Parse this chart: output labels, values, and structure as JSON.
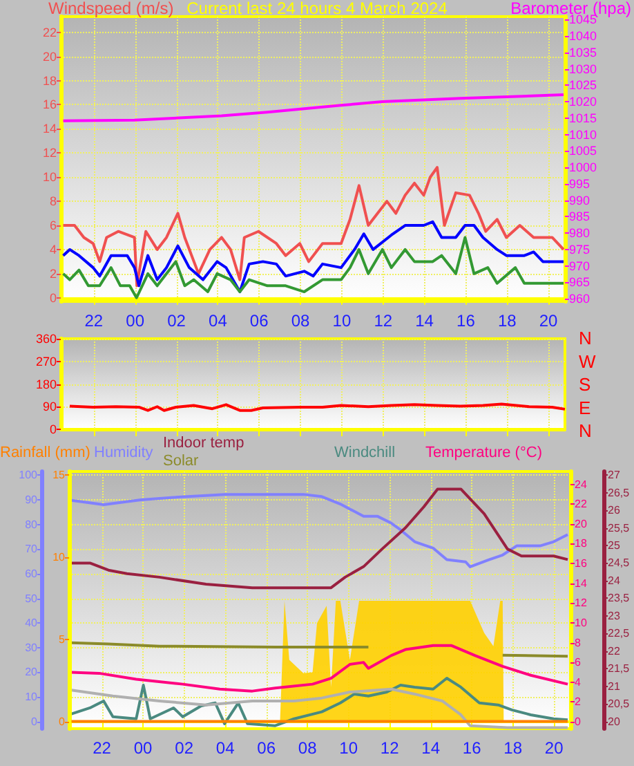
{
  "chart_data": [
    {
      "type": "line",
      "title": "Current last 24 hours 4 March 2024",
      "ylabel": "Windspeed (m/s)",
      "y2label": "Barometer (hpa)",
      "xlim": [
        "2024-03-03T20:24",
        "2024-03-04T20:48"
      ],
      "xticks": [
        {
          "value": "2024-03-03T22:00",
          "label": "22"
        },
        {
          "value": "2024-03-04T00:00",
          "label": "00"
        },
        {
          "value": "2024-03-04T02:00",
          "label": "02"
        },
        {
          "value": "2024-03-04T04:00",
          "label": "04"
        },
        {
          "value": "2024-03-04T06:00",
          "label": "06"
        },
        {
          "value": "2024-03-04T08:00",
          "label": "08"
        },
        {
          "value": "2024-03-04T10:00",
          "label": "10"
        },
        {
          "value": "2024-03-04T12:00",
          "label": "12"
        },
        {
          "value": "2024-03-04T14:00",
          "label": "14"
        },
        {
          "value": "2024-03-04T16:00",
          "label": "16"
        },
        {
          "value": "2024-03-04T18:00",
          "label": "18"
        },
        {
          "value": "2024-03-04T20:00",
          "label": "20"
        }
      ],
      "ylim": [
        -0.3,
        23.3
      ],
      "yticks": [
        0,
        2,
        4,
        6,
        8,
        10,
        12,
        14,
        16,
        18,
        20,
        22
      ],
      "y2lim": [
        959.2,
        1045.9
      ],
      "y2ticks": [
        960,
        965,
        970,
        975,
        980,
        985,
        990,
        995,
        1000,
        1005,
        1010,
        1015,
        1020,
        1025,
        1030,
        1035,
        1040,
        1045
      ],
      "grid": true,
      "marker": "none",
      "series": [
        {
          "color": "#f05050",
          "x": [
            "2024-03-03T20:31",
            "2024-03-03T21:04",
            "2024-03-03T21:31",
            "2024-03-03T21:58",
            "2024-03-03T22:17",
            "2024-03-03T22:37",
            "2024-03-03T23:11",
            "2024-03-03T23:58",
            "2024-03-04T00:05",
            "2024-03-04T00:31",
            "2024-03-04T01:04",
            "2024-03-04T01:31",
            "2024-03-04T02:04",
            "2024-03-04T02:24",
            "2024-03-04T03:04",
            "2024-03-04T03:37",
            "2024-03-04T04:11",
            "2024-03-04T04:37",
            "2024-03-04T05:04",
            "2024-03-04T05:17",
            "2024-03-04T05:58",
            "2024-03-04T06:50",
            "2024-03-04T07:17",
            "2024-03-04T07:58",
            "2024-03-04T08:24",
            "2024-03-04T09:04",
            "2024-03-04T09:58",
            "2024-03-04T10:24",
            "2024-03-04T10:50",
            "2024-03-04T11:17",
            "2024-03-04T11:44",
            "2024-03-04T12:11",
            "2024-03-04T12:37",
            "2024-03-04T13:04",
            "2024-03-04T13:31",
            "2024-03-04T13:58",
            "2024-03-04T14:17",
            "2024-03-04T14:37",
            "2024-03-04T14:58",
            "2024-03-04T15:31",
            "2024-03-04T16:11",
            "2024-03-04T16:37",
            "2024-03-04T16:58",
            "2024-03-04T17:31",
            "2024-03-04T17:58",
            "2024-03-04T18:37",
            "2024-03-04T19:17",
            "2024-03-04T20:11",
            "2024-03-04T20:44"
          ],
          "values": [
            6,
            6,
            5,
            4.5,
            3,
            5,
            5.5,
            5,
            1,
            5.5,
            4,
            5,
            7,
            5,
            2,
            4,
            5,
            4,
            1.5,
            5,
            5.5,
            4.5,
            3.5,
            4.5,
            3,
            4.5,
            4.5,
            6.5,
            9.3,
            6,
            7,
            8,
            7,
            8.5,
            9.5,
            8.5,
            10,
            10.8,
            6,
            8.7,
            8.5,
            7,
            5.5,
            6.5,
            5,
            6,
            5,
            5,
            4
          ]
        },
        {
          "color": "#0000ff",
          "x": [
            "2024-03-03T20:31",
            "2024-03-03T20:50",
            "2024-03-03T21:17",
            "2024-03-03T21:58",
            "2024-03-03T22:17",
            "2024-03-03T22:50",
            "2024-03-03T23:37",
            "2024-03-03T23:58",
            "2024-03-04T00:11",
            "2024-03-04T00:37",
            "2024-03-04T01:04",
            "2024-03-04T01:31",
            "2024-03-04T02:04",
            "2024-03-04T02:37",
            "2024-03-04T03:17",
            "2024-03-04T03:58",
            "2024-03-04T04:24",
            "2024-03-04T05:04",
            "2024-03-04T05:31",
            "2024-03-04T06:11",
            "2024-03-04T06:50",
            "2024-03-04T07:17",
            "2024-03-04T08:11",
            "2024-03-04T08:37",
            "2024-03-04T09:04",
            "2024-03-04T09:58",
            "2024-03-04T10:37",
            "2024-03-04T11:04",
            "2024-03-04T11:31",
            "2024-03-04T12:24",
            "2024-03-04T13:04",
            "2024-03-04T13:58",
            "2024-03-04T14:24",
            "2024-03-04T14:50",
            "2024-03-04T15:31",
            "2024-03-04T15:58",
            "2024-03-04T16:24",
            "2024-03-04T16:50",
            "2024-03-04T17:31",
            "2024-03-04T17:58",
            "2024-03-04T18:50",
            "2024-03-04T19:17",
            "2024-03-04T19:44",
            "2024-03-04T20:44"
          ],
          "values": [
            3.5,
            4,
            3.5,
            2.5,
            1.8,
            3.5,
            3.5,
            2.5,
            1,
            3.5,
            1.5,
            2.5,
            4.3,
            2.5,
            1.5,
            3,
            2.5,
            0.5,
            2.8,
            3,
            2.8,
            1.8,
            2.2,
            1.8,
            2.8,
            2.5,
            4,
            5.3,
            4,
            5.2,
            6,
            6,
            6.3,
            5,
            5,
            6,
            6,
            5,
            4,
            3.5,
            3.5,
            3.8,
            3,
            3
          ]
        },
        {
          "color": "#339933",
          "x": [
            "2024-03-03T20:31",
            "2024-03-03T20:50",
            "2024-03-03T21:17",
            "2024-03-03T21:44",
            "2024-03-03T22:17",
            "2024-03-03T22:50",
            "2024-03-03T23:17",
            "2024-03-03T23:44",
            "2024-03-04T00:04",
            "2024-03-04T00:37",
            "2024-03-04T01:04",
            "2024-03-04T01:58",
            "2024-03-04T02:24",
            "2024-03-04T02:50",
            "2024-03-04T03:31",
            "2024-03-04T03:58",
            "2024-03-04T04:37",
            "2024-03-04T05:04",
            "2024-03-04T05:31",
            "2024-03-04T06:24",
            "2024-03-04T07:17",
            "2024-03-04T08:11",
            "2024-03-04T09:04",
            "2024-03-04T09:58",
            "2024-03-04T10:24",
            "2024-03-04T10:50",
            "2024-03-04T11:17",
            "2024-03-04T11:58",
            "2024-03-04T12:24",
            "2024-03-04T13:04",
            "2024-03-04T13:31",
            "2024-03-04T14:24",
            "2024-03-04T14:50",
            "2024-03-04T15:31",
            "2024-03-04T15:58",
            "2024-03-04T16:24",
            "2024-03-04T17:04",
            "2024-03-04T17:31",
            "2024-03-04T18:24",
            "2024-03-04T18:50",
            "2024-03-04T19:44",
            "2024-03-04T20:44"
          ],
          "values": [
            2,
            1.5,
            2.3,
            1,
            1,
            2.5,
            1,
            1,
            0,
            2,
            1,
            3,
            1,
            1.5,
            0.5,
            2,
            1.5,
            0.5,
            1.5,
            1,
            1,
            0.5,
            1.5,
            1.5,
            2.5,
            4,
            2,
            4,
            2.5,
            4,
            3,
            3,
            3.5,
            2,
            5,
            2,
            2.5,
            1.2,
            2.5,
            1.2,
            1.2,
            1.2
          ]
        },
        {
          "color": "#ff00ff",
          "axis": "y2",
          "x": [
            "2024-03-03T20:31",
            "2024-03-03T23:58",
            "2024-03-04T04:11",
            "2024-03-04T06:24",
            "2024-03-04T09:58",
            "2024-03-04T11:58",
            "2024-03-04T15:44",
            "2024-03-04T20:44"
          ],
          "values": [
            1014.2,
            1014.4,
            1015.7,
            1016.8,
            1018.9,
            1020,
            1021,
            1022.1
          ]
        }
      ]
    },
    {
      "type": "line",
      "xlim": [
        "2024-03-03T20:24",
        "2024-03-04T20:48"
      ],
      "xticks": [
        {
          "value": "2024-03-03T22:00",
          "label": null
        },
        {
          "value": "2024-03-04T00:00",
          "label": null
        },
        {
          "value": "2024-03-04T02:00",
          "label": null
        },
        {
          "value": "2024-03-04T04:00",
          "label": null
        },
        {
          "value": "2024-03-04T06:00",
          "label": null
        },
        {
          "value": "2024-03-04T08:00",
          "label": null
        },
        {
          "value": "2024-03-04T10:00",
          "label": null
        },
        {
          "value": "2024-03-04T12:00",
          "label": null
        },
        {
          "value": "2024-03-04T14:00",
          "label": null
        },
        {
          "value": "2024-03-04T16:00",
          "label": null
        },
        {
          "value": "2024-03-04T18:00",
          "label": null
        },
        {
          "value": "2024-03-04T20:00",
          "label": null
        }
      ],
      "tick_labels": "y",
      "ylim": [
        0,
        360
      ],
      "yticks": [
        0,
        90,
        180,
        270,
        360
      ],
      "annotations": [
        "N",
        "W",
        "S",
        "E",
        "N"
      ],
      "grid": true,
      "marker": "none",
      "series": [
        {
          "color": "#ff0000",
          "x": [
            "2024-03-03T20:50",
            "2024-03-03T21:58",
            "2024-03-03T23:04",
            "2024-03-04T00:11",
            "2024-03-04T00:37",
            "2024-03-04T01:04",
            "2024-03-04T01:24",
            "2024-03-04T01:58",
            "2024-03-04T02:50",
            "2024-03-04T03:44",
            "2024-03-04T04:24",
            "2024-03-04T05:04",
            "2024-03-04T05:37",
            "2024-03-04T06:11",
            "2024-03-04T07:58",
            "2024-03-04T09:04",
            "2024-03-04T09:58",
            "2024-03-04T11:17",
            "2024-03-04T12:24",
            "2024-03-04T13:31",
            "2024-03-04T14:37",
            "2024-03-04T15:44",
            "2024-03-04T16:50",
            "2024-03-04T17:44",
            "2024-03-04T19:04",
            "2024-03-04T20:11",
            "2024-03-04T20:48"
          ],
          "values": [
            92,
            88,
            90,
            88,
            75,
            90,
            75,
            88,
            95,
            82,
            98,
            75,
            75,
            85,
            88,
            88,
            95,
            90,
            95,
            98,
            95,
            92,
            95,
            100,
            90,
            88,
            80
          ]
        }
      ]
    },
    {
      "type": "line",
      "xlim": [
        "2024-03-03T20:24",
        "2024-03-04T20:48"
      ],
      "legend": "top",
      "xticks": [
        {
          "value": "2024-03-03T22:00",
          "label": "22"
        },
        {
          "value": "2024-03-04T00:00",
          "label": "00"
        },
        {
          "value": "2024-03-04T02:00",
          "label": "02"
        },
        {
          "value": "2024-03-04T04:00",
          "label": "04"
        },
        {
          "value": "2024-03-04T06:00",
          "label": "06"
        },
        {
          "value": "2024-03-04T08:00",
          "label": "08"
        },
        {
          "value": "2024-03-04T10:00",
          "label": "10"
        },
        {
          "value": "2024-03-04T12:00",
          "label": "12"
        },
        {
          "value": "2024-03-04T14:00",
          "label": "14"
        },
        {
          "value": "2024-03-04T16:00",
          "label": "16"
        },
        {
          "value": "2024-03-04T18:00",
          "label": "18"
        },
        {
          "value": "2024-03-04T20:00",
          "label": "20"
        }
      ],
      "ylim": [
        -2.9,
        101.5
      ],
      "yticks": [
        0,
        10,
        20,
        30,
        40,
        50,
        60,
        70,
        80,
        90,
        100
      ],
      "y2lim": [
        -0.7,
        25.3
      ],
      "y2ticks": [
        0,
        2,
        4,
        6,
        8,
        10,
        12,
        14,
        16,
        18,
        20,
        22,
        24
      ],
      "y3lim": [
        19.8,
        27.1
      ],
      "y3ticks": [
        20,
        {
          "value": 20.5,
          "label": "20,5"
        },
        21,
        {
          "value": 21.5,
          "label": "21,5"
        },
        22,
        {
          "value": 22.5,
          "label": "22,5"
        },
        23,
        {
          "value": 23.5,
          "label": "23,5"
        },
        24,
        {
          "value": 24.5,
          "label": "24,5"
        },
        25,
        {
          "value": 25.5,
          "label": "25,5"
        },
        26,
        {
          "value": 26.5,
          "label": "26,5"
        },
        27
      ],
      "grid": true,
      "marker": "none",
      "series": [
        {
          "name": "Humidity",
          "color": "#8080ff",
          "x": [
            "2024-03-03T20:31",
            "2024-03-03T22:05",
            "2024-03-03T22:59",
            "2024-03-03T23:54",
            "2024-03-04T01:29",
            "2024-03-04T03:58",
            "2024-03-04T07:48",
            "2024-03-04T08:42",
            "2024-03-04T09:36",
            "2024-03-04T10:44",
            "2024-03-04T11:25",
            "2024-03-04T12:05",
            "2024-03-04T12:32",
            "2024-03-04T13:13",
            "2024-03-04T14:07",
            "2024-03-04T14:47",
            "2024-03-04T15:42",
            "2024-03-04T15:55",
            "2024-03-04T16:50",
            "2024-03-04T17:30",
            "2024-03-04T18:11",
            "2024-03-04T19:19",
            "2024-03-04T19:59",
            "2024-03-04T20:40"
          ],
          "values": [
            89.8,
            88,
            89,
            90,
            91,
            92.2,
            92.2,
            91.3,
            88.3,
            83.3,
            83.3,
            80.5,
            77.8,
            73,
            70.4,
            65.7,
            64.8,
            62.8,
            65.7,
            67.6,
            71.3,
            71.3,
            73,
            75.9
          ]
        },
        {
          "name": "Indoor temp",
          "color": "#9a2040",
          "axis": "y3",
          "x": [
            "2024-03-03T20:31",
            "2024-03-03T21:25",
            "2024-03-03T22:19",
            "2024-03-03T23:13",
            "2024-03-04T00:48",
            "2024-03-04T03:04",
            "2024-03-04T05:19",
            "2024-03-04T09:09",
            "2024-03-04T09:50",
            "2024-03-04T10:44",
            "2024-03-04T11:38",
            "2024-03-04T12:46",
            "2024-03-04T13:40",
            "2024-03-04T14:20",
            "2024-03-04T15:28",
            "2024-03-04T16:36",
            "2024-03-04T17:44",
            "2024-03-04T18:25",
            "2024-03-04T19:59",
            "2024-03-04T20:40"
          ],
          "values": [
            24.5,
            24.5,
            24.3,
            24.2,
            24.1,
            23.9,
            23.8,
            23.8,
            24.1,
            24.4,
            24.9,
            25.5,
            26.1,
            26.6,
            26.6,
            25.9,
            24.9,
            24.7,
            24.7,
            24.6
          ]
        },
        {
          "type": "area",
          "color": "#ffd000",
          "x": [
            "2024-03-03T20:31",
            "2024-03-04T06:40",
            "2024-03-04T06:53",
            "2024-03-04T07:07",
            "2024-03-04T07:48",
            "2024-03-04T08:15",
            "2024-03-04T08:28",
            "2024-03-04T08:56",
            "2024-03-04T09:09",
            "2024-03-04T09:23",
            "2024-03-04T09:36",
            "2024-03-04T10:04",
            "2024-03-04T10:31",
            "2024-03-04T15:55",
            "2024-03-04T16:36",
            "2024-03-04T17:03",
            "2024-03-04T17:23",
            "2024-03-04T17:30",
            "2024-03-04T17:33",
            "2024-03-04T20:40"
          ],
          "values": [
            0,
            0,
            49,
            25,
            19.6,
            20,
            40,
            47,
            14,
            49,
            49,
            25,
            49,
            49,
            36,
            30.6,
            49,
            49,
            0,
            0
          ]
        },
        {
          "name": "Solar",
          "color": "#8b8b2a",
          "x": [
            "2024-03-03T20:31",
            "2024-03-03T22:19",
            "2024-03-04T00:48",
            "2024-03-04T06:26",
            "2024-03-04T10:58",
            "2024-03-04T14:00",
            "2024-03-04T17:30",
            "2024-03-04T20:40"
          ],
          "values": [
            32,
            31.5,
            30.6,
            30.2,
            30.2,
            null,
            26.9,
            26.5
          ]
        },
        {
          "name": "Temperature (°C)",
          "color": "#ff0080",
          "axis": "y2",
          "x": [
            "2024-03-03T20:31",
            "2024-03-03T21:52",
            "2024-03-03T23:40",
            "2024-03-04T01:56",
            "2024-03-04T03:44",
            "2024-03-04T05:19",
            "2024-03-04T06:26",
            "2024-03-04T08:15",
            "2024-03-04T09:09",
            "2024-03-04T10:04",
            "2024-03-04T10:44",
            "2024-03-04T10:58",
            "2024-03-04T12:05",
            "2024-03-04T12:46",
            "2024-03-04T14:07",
            "2024-03-04T15:01",
            "2024-03-04T16:09",
            "2024-03-04T17:30",
            "2024-03-04T18:52",
            "2024-03-04T20:40"
          ],
          "values": [
            5,
            4.9,
            4.3,
            3.8,
            3.3,
            3.1,
            3.4,
            3.8,
            4.4,
            5.8,
            6,
            5.4,
            6.7,
            7.3,
            7.7,
            7.7,
            6.7,
            5.6,
            4.7,
            3.8
          ]
        },
        {
          "name": "Windchill",
          "color": "#4a8a80",
          "axis": "y2",
          "x": [
            "2024-03-03T20:31",
            "2024-03-03T21:25",
            "2024-03-03T22:05",
            "2024-03-03T22:32",
            "2024-03-03T23:40",
            "2024-03-04T00:01",
            "2024-03-04T00:21",
            "2024-03-04T01:29",
            "2024-03-04T01:56",
            "2024-03-04T02:50",
            "2024-03-04T03:31",
            "2024-03-04T03:58",
            "2024-03-04T04:38",
            "2024-03-04T05:05",
            "2024-03-04T06:26",
            "2024-03-04T07:21",
            "2024-03-04T08:42",
            "2024-03-04T09:36",
            "2024-03-04T10:17",
            "2024-03-04T10:58",
            "2024-03-04T11:52",
            "2024-03-04T12:32",
            "2024-03-04T13:13",
            "2024-03-04T14:07",
            "2024-03-04T14:47",
            "2024-03-04T15:28",
            "2024-03-04T16:22",
            "2024-03-04T17:17",
            "2024-03-04T17:57",
            "2024-03-04T18:52",
            "2024-03-04T19:59",
            "2024-03-04T20:40"
          ],
          "values": [
            0.8,
            1.4,
            2.1,
            0.5,
            0.3,
            3.7,
            0.3,
            1.4,
            0.5,
            1.6,
            1.9,
            -0.2,
            1.9,
            -0.2,
            -0.4,
            0.3,
            1,
            1.9,
            2.8,
            2.6,
            3,
            3.7,
            3.5,
            3.3,
            4.4,
            3.5,
            1.9,
            1.7,
            1.2,
            0.7,
            0.3,
            0.2
          ]
        },
        {
          "color": "#b0b0b0",
          "axis": "y2",
          "x": [
            "2024-03-03T20:31",
            "2024-03-03T22:32",
            "2024-03-04T00:48",
            "2024-03-04T03:04",
            "2024-03-04T05:19",
            "2024-03-04T07:21",
            "2024-03-04T08:42",
            "2024-03-04T10:04",
            "2024-03-04T12:05",
            "2024-03-04T13:13",
            "2024-03-04T14:34",
            "2024-03-04T15:28",
            "2024-03-04T15:55",
            "2024-03-04T17:44",
            "2024-03-04T20:40"
          ],
          "values": [
            3.2,
            2.6,
            2.1,
            1.7,
            2.1,
            2.1,
            2.4,
            3,
            3.3,
            2.8,
            2.1,
            0.7,
            -0.4,
            -0.6,
            -0.6
          ]
        }
      ]
    },
    {
      "type": "line",
      "xlim": [
        "2024-03-03T20:24",
        "2024-03-04T20:48"
      ],
      "legend": "top",
      "tick_labels": "y",
      "xticks": [
        {
          "value": "2024-03-03T22:00",
          "label": null
        },
        {
          "value": "2024-03-04T00:00",
          "label": null
        },
        {
          "value": "2024-03-04T02:00",
          "label": null
        },
        {
          "value": "2024-03-04T04:00",
          "label": null
        },
        {
          "value": "2024-03-04T06:00",
          "label": null
        },
        {
          "value": "2024-03-04T08:00",
          "label": null
        },
        {
          "value": "2024-03-04T10:00",
          "label": null
        },
        {
          "value": "2024-03-04T12:00",
          "label": null
        },
        {
          "value": "2024-03-04T14:00",
          "label": null
        },
        {
          "value": "2024-03-04T16:00",
          "label": null
        },
        {
          "value": "2024-03-04T18:00",
          "label": null
        },
        {
          "value": "2024-03-04T20:00",
          "label": null
        }
      ],
      "ylim": [
        -0.44,
        15.22
      ],
      "yticks": [
        0,
        5,
        10,
        15
      ],
      "marker": "none",
      "series": [
        {
          "name": "Rainfall (mm)",
          "color": "#ff8000",
          "x": [
            "2024-03-03T20:31",
            "2024-03-04T20:40"
          ],
          "values": [
            0,
            0
          ]
        }
      ]
    }
  ]
}
